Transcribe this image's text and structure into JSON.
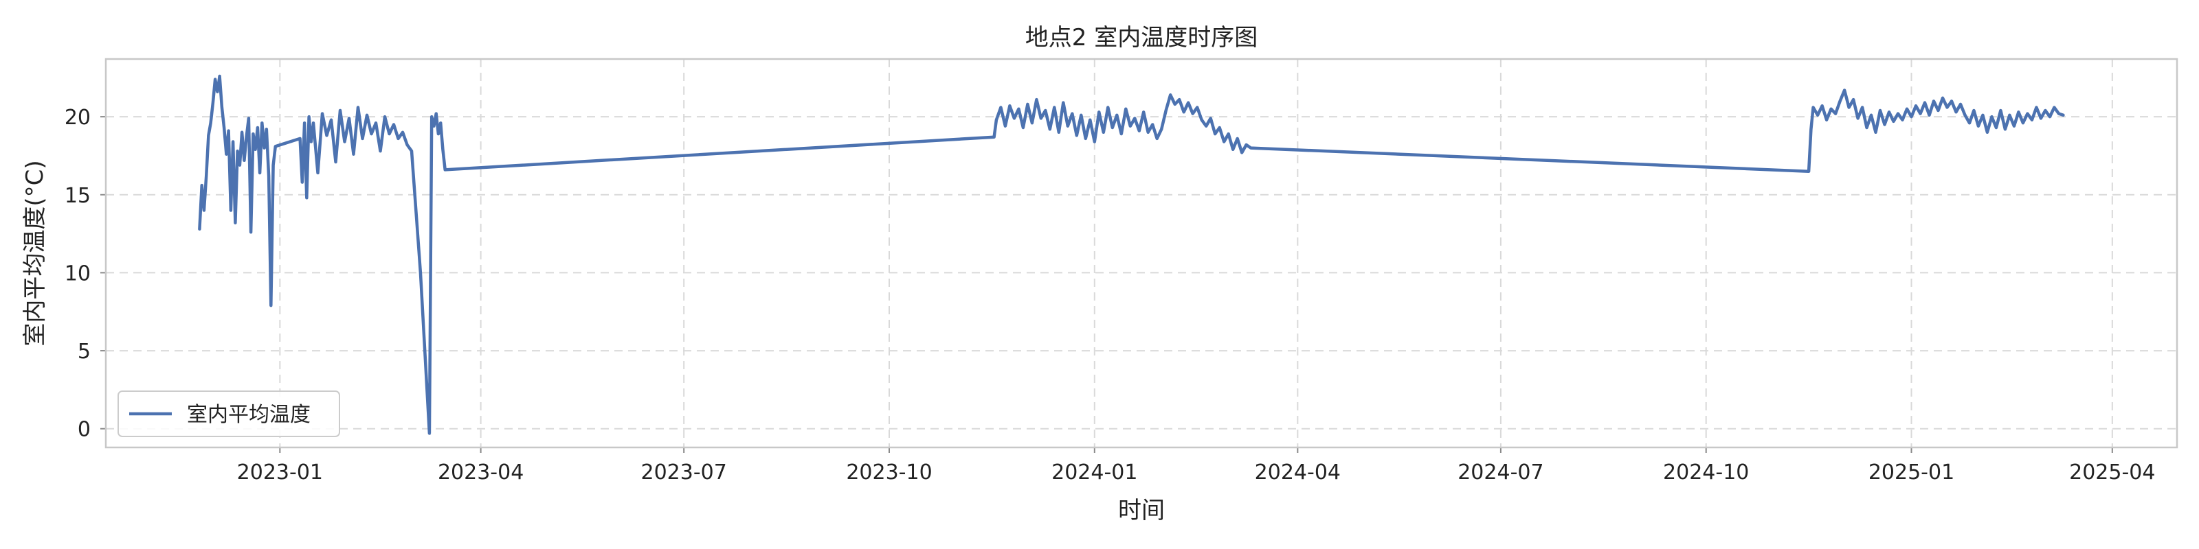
{
  "chart_data": {
    "type": "line",
    "title": "地点2 室内温度时序图",
    "xlabel": "时间",
    "ylabel": "室内平均温度(°C)",
    "xlim": [
      "2022-10-15",
      "2025-04-30"
    ],
    "ylim": [
      -1.2,
      23.7
    ],
    "x_ticks": [
      "2023-01-01",
      "2023-04-01",
      "2023-07-01",
      "2023-10-01",
      "2024-01-01",
      "2024-04-01",
      "2024-07-01",
      "2024-10-01",
      "2025-01-01",
      "2025-04-01"
    ],
    "x_tick_labels": [
      "2023-01",
      "2023-04",
      "2023-07",
      "2023-10",
      "2024-01",
      "2024-04",
      "2024-07",
      "2024-10",
      "2025-01",
      "2025-04"
    ],
    "y_ticks": [
      0,
      5,
      10,
      15,
      20
    ],
    "y_tick_labels": [
      "0",
      "5",
      "10",
      "15",
      "20"
    ],
    "grid": true,
    "legend_position": "lower-left",
    "series": [
      {
        "name": "室内平均温度",
        "color": "#4c72b0",
        "points": [
          [
            "2022-11-26",
            12.8
          ],
          [
            "2022-11-27",
            15.6
          ],
          [
            "2022-11-28",
            14.0
          ],
          [
            "2022-11-29",
            16.2
          ],
          [
            "2022-11-30",
            18.8
          ],
          [
            "2022-12-01",
            19.6
          ],
          [
            "2022-12-02",
            20.9
          ],
          [
            "2022-12-03",
            22.4
          ],
          [
            "2022-12-04",
            21.6
          ],
          [
            "2022-12-05",
            22.6
          ],
          [
            "2022-12-06",
            20.6
          ],
          [
            "2022-12-07",
            19.3
          ],
          [
            "2022-12-08",
            17.6
          ],
          [
            "2022-12-09",
            19.1
          ],
          [
            "2022-12-10",
            14.0
          ],
          [
            "2022-12-11",
            18.4
          ],
          [
            "2022-12-12",
            13.2
          ],
          [
            "2022-12-13",
            17.8
          ],
          [
            "2022-12-14",
            16.9
          ],
          [
            "2022-12-15",
            19.0
          ],
          [
            "2022-12-16",
            17.2
          ],
          [
            "2022-12-17",
            18.7
          ],
          [
            "2022-12-18",
            19.9
          ],
          [
            "2022-12-19",
            12.6
          ],
          [
            "2022-12-20",
            18.9
          ],
          [
            "2022-12-21",
            17.9
          ],
          [
            "2022-12-22",
            19.3
          ],
          [
            "2022-12-23",
            16.4
          ],
          [
            "2022-12-24",
            19.6
          ],
          [
            "2022-12-25",
            18.0
          ],
          [
            "2022-12-26",
            19.2
          ],
          [
            "2022-12-27",
            16.2
          ],
          [
            "2022-12-28",
            7.9
          ],
          [
            "2022-12-29",
            16.9
          ],
          [
            "2022-12-30",
            18.1
          ],
          [
            "2023-01-10",
            18.6
          ],
          [
            "2023-01-11",
            15.8
          ],
          [
            "2023-01-12",
            19.6
          ],
          [
            "2023-01-13",
            14.8
          ],
          [
            "2023-01-14",
            20.0
          ],
          [
            "2023-01-15",
            18.4
          ],
          [
            "2023-01-16",
            19.6
          ],
          [
            "2023-01-18",
            16.4
          ],
          [
            "2023-01-20",
            20.2
          ],
          [
            "2023-01-22",
            18.8
          ],
          [
            "2023-01-24",
            19.8
          ],
          [
            "2023-01-26",
            17.1
          ],
          [
            "2023-01-28",
            20.4
          ],
          [
            "2023-01-30",
            18.4
          ],
          [
            "2023-02-01",
            19.9
          ],
          [
            "2023-02-03",
            17.6
          ],
          [
            "2023-02-05",
            20.6
          ],
          [
            "2023-02-07",
            18.6
          ],
          [
            "2023-02-09",
            20.1
          ],
          [
            "2023-02-11",
            18.9
          ],
          [
            "2023-02-13",
            19.6
          ],
          [
            "2023-02-15",
            17.8
          ],
          [
            "2023-02-17",
            20.0
          ],
          [
            "2023-02-19",
            18.9
          ],
          [
            "2023-02-21",
            19.5
          ],
          [
            "2023-02-23",
            18.6
          ],
          [
            "2023-02-25",
            19.0
          ],
          [
            "2023-02-27",
            18.2
          ],
          [
            "2023-03-01",
            17.8
          ],
          [
            "2023-03-05",
            10.0
          ],
          [
            "2023-03-09",
            -0.3
          ],
          [
            "2023-03-10",
            20.0
          ],
          [
            "2023-03-11",
            19.4
          ],
          [
            "2023-03-12",
            20.2
          ],
          [
            "2023-03-13",
            18.9
          ],
          [
            "2023-03-14",
            19.6
          ],
          [
            "2023-03-15",
            17.9
          ],
          [
            "2023-03-16",
            16.6
          ],
          [
            "2023-11-17",
            18.7
          ],
          [
            "2023-11-18",
            19.8
          ],
          [
            "2023-11-20",
            20.6
          ],
          [
            "2023-11-22",
            19.4
          ],
          [
            "2023-11-24",
            20.7
          ],
          [
            "2023-11-26",
            19.9
          ],
          [
            "2023-11-28",
            20.5
          ],
          [
            "2023-11-30",
            19.3
          ],
          [
            "2023-12-02",
            20.8
          ],
          [
            "2023-12-04",
            19.6
          ],
          [
            "2023-12-06",
            21.1
          ],
          [
            "2023-12-08",
            19.9
          ],
          [
            "2023-12-10",
            20.4
          ],
          [
            "2023-12-12",
            19.2
          ],
          [
            "2023-12-14",
            20.6
          ],
          [
            "2023-12-16",
            19.0
          ],
          [
            "2023-12-18",
            20.9
          ],
          [
            "2023-12-20",
            19.4
          ],
          [
            "2023-12-22",
            20.2
          ],
          [
            "2023-12-24",
            18.8
          ],
          [
            "2023-12-26",
            20.1
          ],
          [
            "2023-12-28",
            18.6
          ],
          [
            "2023-12-30",
            19.8
          ],
          [
            "2024-01-01",
            18.4
          ],
          [
            "2024-01-03",
            20.3
          ],
          [
            "2024-01-05",
            19.0
          ],
          [
            "2024-01-07",
            20.6
          ],
          [
            "2024-01-09",
            19.3
          ],
          [
            "2024-01-11",
            20.1
          ],
          [
            "2024-01-13",
            18.9
          ],
          [
            "2024-01-15",
            20.5
          ],
          [
            "2024-01-17",
            19.4
          ],
          [
            "2024-01-19",
            19.9
          ],
          [
            "2024-01-21",
            19.1
          ],
          [
            "2024-01-23",
            20.3
          ],
          [
            "2024-01-25",
            19.0
          ],
          [
            "2024-01-27",
            19.5
          ],
          [
            "2024-01-29",
            18.6
          ],
          [
            "2024-01-31",
            19.2
          ],
          [
            "2024-02-02",
            20.4
          ],
          [
            "2024-02-04",
            21.4
          ],
          [
            "2024-02-06",
            20.8
          ],
          [
            "2024-02-08",
            21.1
          ],
          [
            "2024-02-10",
            20.3
          ],
          [
            "2024-02-12",
            20.9
          ],
          [
            "2024-02-14",
            20.2
          ],
          [
            "2024-02-16",
            20.6
          ],
          [
            "2024-02-18",
            19.8
          ],
          [
            "2024-02-20",
            19.4
          ],
          [
            "2024-02-22",
            19.9
          ],
          [
            "2024-02-24",
            18.9
          ],
          [
            "2024-02-26",
            19.3
          ],
          [
            "2024-02-28",
            18.4
          ],
          [
            "2024-03-01",
            18.9
          ],
          [
            "2024-03-03",
            17.9
          ],
          [
            "2024-03-05",
            18.6
          ],
          [
            "2024-03-07",
            17.7
          ],
          [
            "2024-03-09",
            18.2
          ],
          [
            "2024-03-11",
            18.0
          ],
          [
            "2024-11-16",
            16.5
          ],
          [
            "2024-11-17",
            19.2
          ],
          [
            "2024-11-18",
            20.6
          ],
          [
            "2024-11-20",
            20.1
          ],
          [
            "2024-11-22",
            20.7
          ],
          [
            "2024-11-24",
            19.8
          ],
          [
            "2024-11-26",
            20.5
          ],
          [
            "2024-11-28",
            20.2
          ],
          [
            "2024-11-30",
            21.0
          ],
          [
            "2024-12-02",
            21.7
          ],
          [
            "2024-12-04",
            20.6
          ],
          [
            "2024-12-06",
            21.1
          ],
          [
            "2024-12-08",
            19.9
          ],
          [
            "2024-12-10",
            20.6
          ],
          [
            "2024-12-12",
            19.3
          ],
          [
            "2024-12-14",
            20.1
          ],
          [
            "2024-12-16",
            19.0
          ],
          [
            "2024-12-18",
            20.4
          ],
          [
            "2024-12-20",
            19.5
          ],
          [
            "2024-12-22",
            20.3
          ],
          [
            "2024-12-24",
            19.7
          ],
          [
            "2024-12-26",
            20.2
          ],
          [
            "2024-12-28",
            19.8
          ],
          [
            "2024-12-30",
            20.5
          ],
          [
            "2025-01-01",
            20.0
          ],
          [
            "2025-01-03",
            20.7
          ],
          [
            "2025-01-05",
            20.2
          ],
          [
            "2025-01-07",
            20.9
          ],
          [
            "2025-01-09",
            20.1
          ],
          [
            "2025-01-11",
            21.0
          ],
          [
            "2025-01-13",
            20.4
          ],
          [
            "2025-01-15",
            21.2
          ],
          [
            "2025-01-17",
            20.6
          ],
          [
            "2025-01-19",
            21.0
          ],
          [
            "2025-01-21",
            20.3
          ],
          [
            "2025-01-23",
            20.8
          ],
          [
            "2025-01-25",
            20.1
          ],
          [
            "2025-01-27",
            19.6
          ],
          [
            "2025-01-29",
            20.4
          ],
          [
            "2025-01-31",
            19.4
          ],
          [
            "2025-02-02",
            20.1
          ],
          [
            "2025-02-04",
            19.0
          ],
          [
            "2025-02-06",
            20.0
          ],
          [
            "2025-02-08",
            19.3
          ],
          [
            "2025-02-10",
            20.4
          ],
          [
            "2025-02-12",
            19.2
          ],
          [
            "2025-02-14",
            20.1
          ],
          [
            "2025-02-16",
            19.4
          ],
          [
            "2025-02-18",
            20.3
          ],
          [
            "2025-02-20",
            19.6
          ],
          [
            "2025-02-22",
            20.2
          ],
          [
            "2025-02-24",
            19.8
          ],
          [
            "2025-02-26",
            20.6
          ],
          [
            "2025-02-28",
            19.9
          ],
          [
            "2025-03-02",
            20.4
          ],
          [
            "2025-03-04",
            20.0
          ],
          [
            "2025-03-06",
            20.6
          ],
          [
            "2025-03-08",
            20.2
          ],
          [
            "2025-03-10",
            20.1
          ]
        ]
      }
    ]
  }
}
